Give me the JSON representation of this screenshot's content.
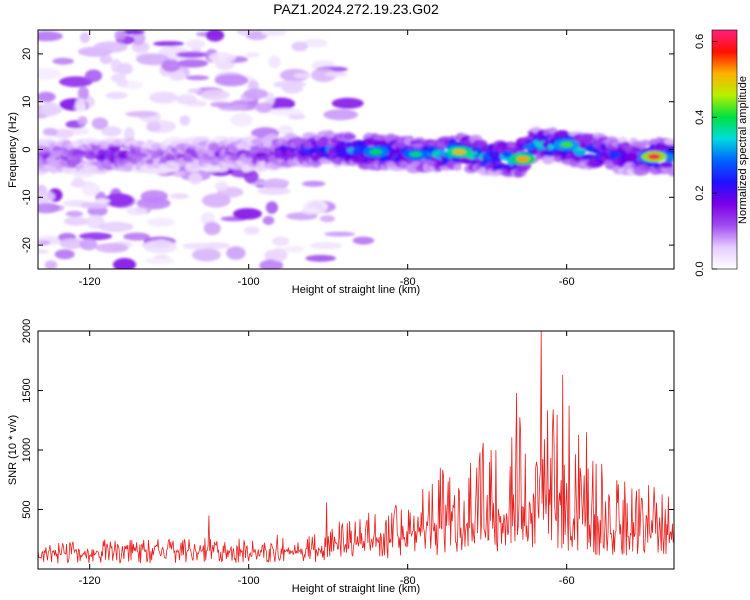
{
  "title": "PAZ1.2024.272.19.23.G02",
  "chart_data": [
    {
      "type": "heatmap",
      "title": "PAZ1.2024.272.19.23.G02",
      "xlabel": "Height of straight line (km)",
      "ylabel": "Frequency (Hz)",
      "xlim": [
        -126.5,
        -46.5
      ],
      "ylim": [
        -25,
        25
      ],
      "xticks": [
        -120,
        -100,
        -80,
        -60
      ],
      "yticks": [
        -20,
        -10,
        0,
        10,
        20
      ],
      "colorbar": {
        "label": "Normalized spectral amplitude",
        "range": [
          0,
          0.63
        ],
        "ticks": [
          0.0,
          0.2,
          0.4,
          0.6
        ],
        "colormap": [
          "#ffffff",
          "#e6ccff",
          "#a04cf0",
          "#7a00e6",
          "#2010ff",
          "#0064ff",
          "#00dcdc",
          "#00e040",
          "#b8f000",
          "#ffb000",
          "#ff1000",
          "#ff2080"
        ]
      },
      "main_band": {
        "points": [
          {
            "x": -126,
            "f": -1.5,
            "a": 0.14
          },
          {
            "x": -120,
            "f": -1.5,
            "a": 0.17
          },
          {
            "x": -116,
            "f": -1.0,
            "a": 0.2
          },
          {
            "x": -112,
            "f": -1.5,
            "a": 0.12
          },
          {
            "x": -106,
            "f": -1.0,
            "a": 0.14
          },
          {
            "x": -100,
            "f": -1.0,
            "a": 0.15
          },
          {
            "x": -96,
            "f": -0.5,
            "a": 0.2
          },
          {
            "x": -92,
            "f": 0.0,
            "a": 0.24
          },
          {
            "x": -88,
            "f": 0.0,
            "a": 0.3
          },
          {
            "x": -84,
            "f": -0.5,
            "a": 0.36
          },
          {
            "x": -80,
            "f": -1.0,
            "a": 0.3
          },
          {
            "x": -76,
            "f": -1.0,
            "a": 0.32
          },
          {
            "x": -73,
            "f": -0.5,
            "a": 0.42
          },
          {
            "x": -70,
            "f": -1.5,
            "a": 0.33
          },
          {
            "x": -66,
            "f": -2.0,
            "a": 0.4
          },
          {
            "x": -64,
            "f": 1.0,
            "a": 0.35
          },
          {
            "x": -60,
            "f": 0.5,
            "a": 0.38
          },
          {
            "x": -56,
            "f": -0.5,
            "a": 0.3
          },
          {
            "x": -52,
            "f": -1.5,
            "a": 0.25
          },
          {
            "x": -48,
            "f": -1.5,
            "a": 0.36
          }
        ],
        "width_hz": 4
      },
      "hotspots": [
        {
          "x": -73.5,
          "f": -0.5,
          "a": 0.5
        },
        {
          "x": -65.5,
          "f": -2.0,
          "a": 0.52
        },
        {
          "x": -60,
          "f": 1.0,
          "a": 0.42
        },
        {
          "x": -49,
          "f": -1.5,
          "a": 0.6
        },
        {
          "x": -84,
          "f": -0.5,
          "a": 0.4
        },
        {
          "x": -79,
          "f": -1.0,
          "a": 0.38
        }
      ],
      "background_noise": {
        "region_x": [
          -126.5,
          -96
        ],
        "amplitude": 0.08
      }
    },
    {
      "type": "line",
      "xlabel": "Height of straight line (km)",
      "ylabel": "SNR (10 * v/v)",
      "xlim": [
        -126.5,
        -46.5
      ],
      "ylim": [
        0,
        2000
      ],
      "xticks": [
        -120,
        -100,
        -80,
        -60
      ],
      "yticks": [
        500,
        1000,
        1500,
        2000
      ],
      "color": "#e8201e",
      "series": [
        {
          "envelope": [
            {
              "x": -126.5,
              "base": 130,
              "peak": 250
            },
            {
              "x": -110,
              "base": 140,
              "peak": 250
            },
            {
              "x": -100,
              "base": 140,
              "peak": 280
            },
            {
              "x": -92,
              "base": 150,
              "peak": 300
            },
            {
              "x": -88,
              "base": 180,
              "peak": 420
            },
            {
              "x": -84,
              "base": 230,
              "peak": 520
            },
            {
              "x": -80,
              "base": 250,
              "peak": 600
            },
            {
              "x": -76,
              "base": 330,
              "peak": 850
            },
            {
              "x": -72,
              "base": 380,
              "peak": 950
            },
            {
              "x": -68,
              "base": 420,
              "peak": 1100
            },
            {
              "x": -66,
              "base": 480,
              "peak": 1400
            },
            {
              "x": -64,
              "base": 520,
              "peak": 1550
            },
            {
              "x": -63.2,
              "base": 700,
              "peak": 2000
            },
            {
              "x": -62,
              "base": 500,
              "peak": 1400
            },
            {
              "x": -60.3,
              "base": 420,
              "peak": 1600
            },
            {
              "x": -58,
              "base": 350,
              "peak": 1100
            },
            {
              "x": -54,
              "base": 280,
              "peak": 750
            },
            {
              "x": -50,
              "base": 260,
              "peak": 800
            },
            {
              "x": -46.5,
              "base": 250,
              "peak": 700
            }
          ],
          "peaks": [
            {
              "x": -63.2,
              "y": 2000
            },
            {
              "x": -60.5,
              "y": 1630
            },
            {
              "x": -66.3,
              "y": 1480
            },
            {
              "x": -57.5,
              "y": 1150
            },
            {
              "x": -70.5,
              "y": 1060
            },
            {
              "x": -69.5,
              "y": 1000
            },
            {
              "x": -90.2,
              "y": 560
            },
            {
              "x": -105,
              "y": 450
            }
          ]
        }
      ]
    }
  ]
}
